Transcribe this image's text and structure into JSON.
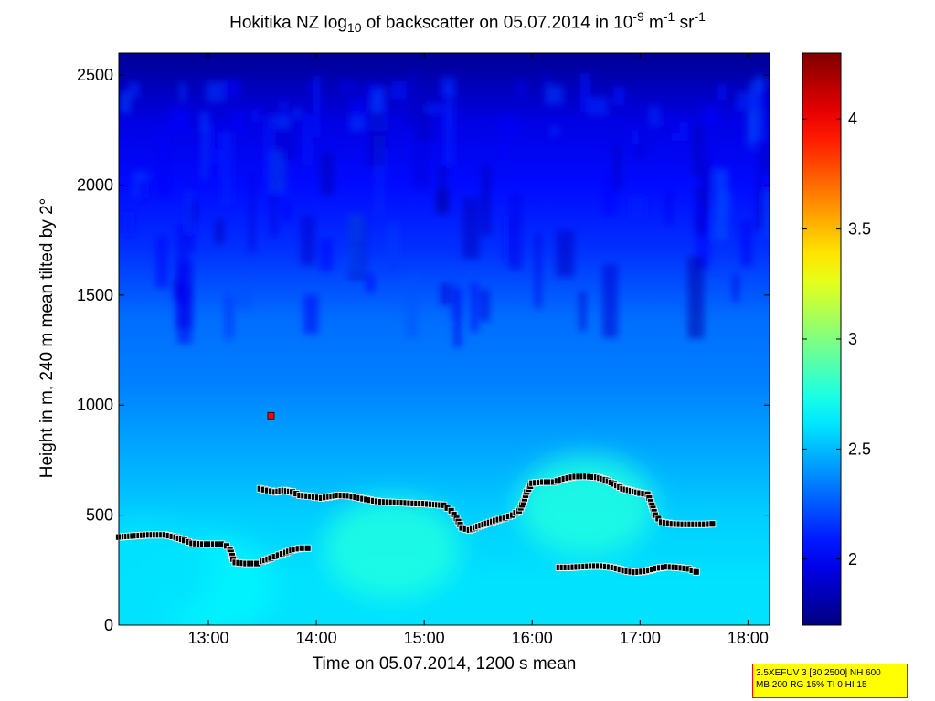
{
  "chart_data": {
    "type": "heatmap",
    "title": {
      "prefix": "Hokitika NZ log",
      "sub": "10",
      "mid": " of backscatter on 05.07.2014 in 10",
      "sup1": "-9",
      "unit1": " m",
      "sup2": "-1",
      "unit2": " sr",
      "sup3": "-1"
    },
    "xlabel": "Time on 05.07.2014, 1200 s mean",
    "ylabel": "Height in m, 240 m mean tilted by 2°",
    "xlim": [
      12.17,
      18.2
    ],
    "ylim": [
      0,
      2600
    ],
    "xticks": [
      13,
      14,
      15,
      16,
      17,
      18
    ],
    "xtick_labels": [
      "13:00",
      "14:00",
      "15:00",
      "16:00",
      "17:00",
      "18:00"
    ],
    "yticks": [
      0,
      500,
      1000,
      1500,
      2000,
      2500
    ],
    "ytick_labels": [
      "0",
      "500",
      "1000",
      "1500",
      "2000",
      "2500"
    ],
    "colorbar": {
      "colormap": "jet",
      "clim": [
        1.7,
        4.3
      ],
      "ticks": [
        2,
        2.5,
        3,
        3.5,
        4
      ],
      "tick_labels": [
        "2",
        "2.5",
        "3",
        "3.5",
        "4"
      ]
    },
    "field_description": {
      "colors": [
        "#00008f",
        "#0000ff",
        "#00ffff",
        "#ffff00",
        "#ff0000",
        "#800000"
      ],
      "high_values_near_ground": [
        [
          14.7,
          350,
          2.75
        ],
        [
          16.5,
          540,
          2.75
        ],
        [
          13.0,
          180,
          2.65
        ],
        [
          12.4,
          250,
          2.6
        ]
      ]
    },
    "series": [
      {
        "marker": "square",
        "color": "#000000",
        "points": [
          [
            12.17,
            400
          ],
          [
            12.3,
            405
          ],
          [
            12.45,
            410
          ],
          [
            12.6,
            410
          ],
          [
            12.7,
            400
          ],
          [
            12.78,
            385
          ],
          [
            12.85,
            372
          ],
          [
            12.95,
            368
          ],
          [
            13.05,
            368
          ],
          [
            13.12,
            368
          ],
          [
            13.17,
            360
          ],
          [
            13.2,
            345
          ],
          [
            13.23,
            300
          ],
          [
            13.25,
            285
          ],
          [
            13.35,
            280
          ],
          [
            13.45,
            280
          ],
          [
            13.5,
            290
          ],
          [
            13.58,
            305
          ],
          [
            13.65,
            318
          ],
          [
            13.72,
            330
          ],
          [
            13.8,
            345
          ],
          [
            13.87,
            350
          ],
          [
            13.92,
            350
          ]
        ]
      },
      {
        "marker": "square",
        "color": "#000000",
        "points": [
          [
            13.48,
            620
          ],
          [
            13.55,
            612
          ],
          [
            13.62,
            605
          ],
          [
            13.7,
            612
          ],
          [
            13.78,
            605
          ],
          [
            13.85,
            590
          ],
          [
            13.95,
            585
          ],
          [
            14.05,
            578
          ],
          [
            14.12,
            583
          ],
          [
            14.2,
            590
          ],
          [
            14.3,
            588
          ],
          [
            14.4,
            578
          ],
          [
            14.5,
            568
          ],
          [
            14.6,
            560
          ],
          [
            14.7,
            558
          ],
          [
            14.8,
            556
          ],
          [
            14.9,
            553
          ],
          [
            15.0,
            552
          ],
          [
            15.1,
            548
          ],
          [
            15.18,
            545
          ],
          [
            15.25,
            520
          ],
          [
            15.3,
            485
          ],
          [
            15.35,
            442
          ],
          [
            15.42,
            432
          ],
          [
            15.5,
            448
          ],
          [
            15.58,
            462
          ],
          [
            15.66,
            475
          ],
          [
            15.75,
            488
          ],
          [
            15.82,
            500
          ],
          [
            15.88,
            520
          ],
          [
            15.92,
            560
          ],
          [
            15.95,
            605
          ],
          [
            16.0,
            645
          ],
          [
            16.1,
            650
          ],
          [
            16.2,
            650
          ],
          [
            16.3,
            665
          ],
          [
            16.4,
            675
          ],
          [
            16.5,
            676
          ],
          [
            16.6,
            672
          ],
          [
            16.68,
            660
          ],
          [
            16.76,
            642
          ],
          [
            16.84,
            620
          ],
          [
            16.92,
            610
          ],
          [
            17.0,
            600
          ],
          [
            17.07,
            595
          ],
          [
            17.1,
            560
          ],
          [
            17.14,
            500
          ],
          [
            17.2,
            468
          ],
          [
            17.3,
            460
          ],
          [
            17.4,
            458
          ],
          [
            17.5,
            458
          ],
          [
            17.6,
            458
          ],
          [
            17.67,
            460
          ]
        ]
      },
      {
        "marker": "square",
        "color": "#000000",
        "points": [
          [
            16.25,
            262
          ],
          [
            16.35,
            262
          ],
          [
            16.45,
            265
          ],
          [
            16.55,
            268
          ],
          [
            16.65,
            268
          ],
          [
            16.75,
            262
          ],
          [
            16.85,
            248
          ],
          [
            16.95,
            240
          ],
          [
            17.05,
            245
          ],
          [
            17.15,
            258
          ],
          [
            17.25,
            265
          ],
          [
            17.35,
            262
          ],
          [
            17.45,
            256
          ],
          [
            17.52,
            242
          ]
        ]
      },
      {
        "marker": "square",
        "color": "#ff0000",
        "points": [
          [
            13.58,
            952
          ]
        ]
      }
    ]
  },
  "info_box": {
    "line1": "3.5XEFUV 3 [30 2500] NH 600",
    "line2": "MB 200 RG 15% TI 0 HI 15"
  }
}
